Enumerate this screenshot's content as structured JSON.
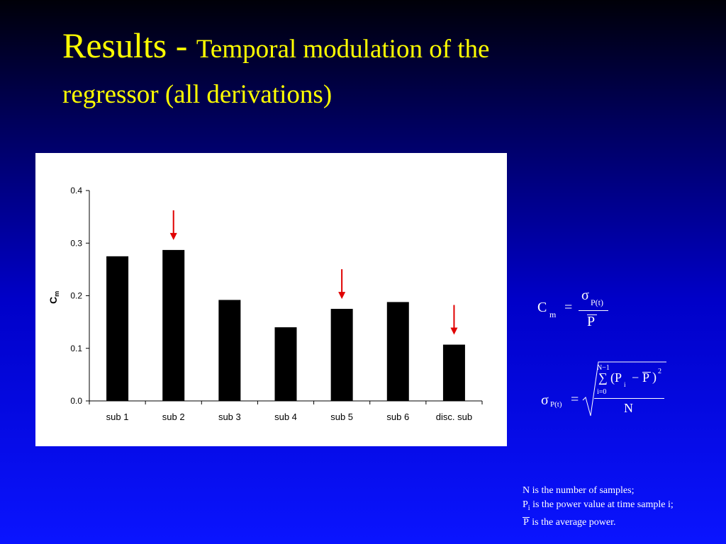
{
  "slide": {
    "title_main": "Results - ",
    "title_sub_line1": "Temporal modulation of the",
    "title_sub_line2": "regressor (all derivations)"
  },
  "chart_data": {
    "type": "bar",
    "categories": [
      "sub 1",
      "sub 2",
      "sub 3",
      "sub 4",
      "sub 5",
      "sub 6",
      "disc. sub"
    ],
    "values": [
      0.275,
      0.287,
      0.192,
      0.14,
      0.175,
      0.188,
      0.107
    ],
    "ylabel": "C",
    "ylabel_sub": "m",
    "ylim": [
      0,
      0.4
    ],
    "yticks": [
      "0.0",
      "0.1",
      "0.2",
      "0.3",
      "0.4"
    ],
    "highlighted": [
      "sub 2",
      "sub 5",
      "disc. sub"
    ],
    "bar_color": "#000000",
    "arrow_color": "#e00000",
    "grid": false
  },
  "formulas": {
    "cm": {
      "lhs": "C",
      "lhs_sub": "m",
      "eq": "=",
      "num": "σ",
      "num_sub": "P(t)",
      "den": "P"
    },
    "sigma": {
      "lhs": "σ",
      "lhs_sub": "P(t)",
      "eq": "=",
      "sum_top": "N−1",
      "sum_sign": "∑",
      "sum_bottom": "i=0",
      "term": "(P",
      "term_sub": "i",
      "minus": "−",
      "pbar": "P",
      "close": ")",
      "power": "2",
      "den": "N"
    }
  },
  "notes": {
    "line1": "N is the number of samples;",
    "line2_var": "P",
    "line2_sub": "i",
    "line2_rest": " is the power value at time sample i;",
    "line3_var": "P",
    "line3_rest": " is the average power."
  }
}
